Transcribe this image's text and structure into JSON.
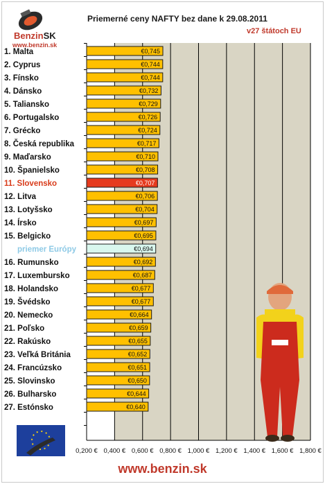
{
  "brand": {
    "logo_name": "Benzin",
    "logo_suffix": "SK",
    "logo_url": "www.benzin.sk",
    "footer_url": "www.benzin.sk"
  },
  "colors": {
    "bar": "#ffc000",
    "bar_highlight": "#e63a1e",
    "bar_average": "#d9f7ee",
    "plot_background": "#d9d5c4",
    "accent_red": "#c0392b"
  },
  "chart_data": {
    "type": "bar",
    "orientation": "horizontal",
    "title": "Priemerné ceny NAFTY bez dane k 29.08.2011",
    "subtitle": "v27 štátoch EU",
    "xlabel": "",
    "ylabel": "",
    "xlim": [
      0.2,
      1.8
    ],
    "x_ticks": [
      "0,200 €",
      "0,400 €",
      "0,600 €",
      "0,800 €",
      "1,000 €",
      "1,200 €",
      "1,400 €",
      "1,600 €",
      "1,800 €"
    ],
    "grid": true,
    "highlight_index": 10,
    "average_index": 15,
    "categories": [
      "1. Malta",
      "2. Cyprus",
      "3. Fínsko",
      "4. Dánsko",
      "5. Taliansko",
      "6. Portugalsko",
      "7. Grécko",
      "8. Česká republika",
      "9. Maďarsko",
      "10. Španielsko",
      "11. Slovensko",
      "12. Litva",
      "13. Lotyšsko",
      "14. Írsko",
      "15. Belgicko",
      "priemer Európy",
      "16. Rumunsko",
      "17. Luxembursko",
      "18. Holandsko",
      "19. Švédsko",
      "20. Nemecko",
      "21. Poľsko",
      "22. Rakúsko",
      "23. Veľká Británia",
      "24. Francúzsko",
      "25. Slovinsko",
      "26. Bulharsko",
      "27. Estónsko"
    ],
    "values": [
      0.745,
      0.744,
      0.744,
      0.732,
      0.729,
      0.726,
      0.724,
      0.717,
      0.71,
      0.708,
      0.707,
      0.706,
      0.704,
      0.697,
      0.695,
      0.694,
      0.692,
      0.687,
      0.677,
      0.677,
      0.664,
      0.659,
      0.655,
      0.652,
      0.651,
      0.65,
      0.644,
      0.64
    ],
    "value_labels": [
      "€0,745",
      "€0,744",
      "€0,744",
      "€0,732",
      "€0,729",
      "€0,726",
      "€0,724",
      "€0,717",
      "€0,710",
      "€0,708",
      "€0,707",
      "€0,706",
      "€0,704",
      "€0,697",
      "€0,695",
      "€0,694",
      "€0,692",
      "€0,687",
      "€0,677",
      "€0,677",
      "€0,664",
      "€0,659",
      "€0,655",
      "€0,652",
      "€0,651",
      "€0,650",
      "€0,644",
      "€0,640"
    ]
  }
}
